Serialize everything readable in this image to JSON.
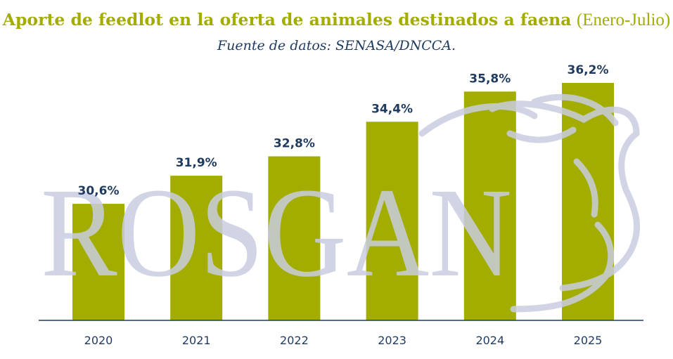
{
  "header": {
    "title": "Aporte de feedlot en la oferta de animales destinados a faena",
    "period": "(Enero-Julio)",
    "source": "Fuente de datos: SENASA/DNCCA."
  },
  "watermark": {
    "text": "ROSGAN",
    "icon": "cow-head-icon"
  },
  "colors": {
    "bar": "#a3ad00",
    "label": "#1f3a5f",
    "axis": "#1f3a5f",
    "watermark": "#c9cde0",
    "title": "#a3ad00"
  },
  "chart_data": {
    "type": "bar",
    "title": "Aporte de feedlot en la oferta de animales destinados a faena (Enero-Julio)",
    "subtitle": "Fuente de datos: SENASA/DNCCA.",
    "categories": [
      "2020",
      "2021",
      "2022",
      "2023",
      "2024",
      "2025"
    ],
    "values": [
      30.6,
      31.9,
      32.8,
      34.4,
      35.8,
      36.2
    ],
    "data_labels": [
      "30,6%",
      "31,9%",
      "32,8%",
      "34,4%",
      "35,8%",
      "36,2%"
    ],
    "xlabel": "",
    "ylabel": "",
    "ylim": [
      25.2,
      36.2
    ],
    "grid": false,
    "legend": "none"
  }
}
